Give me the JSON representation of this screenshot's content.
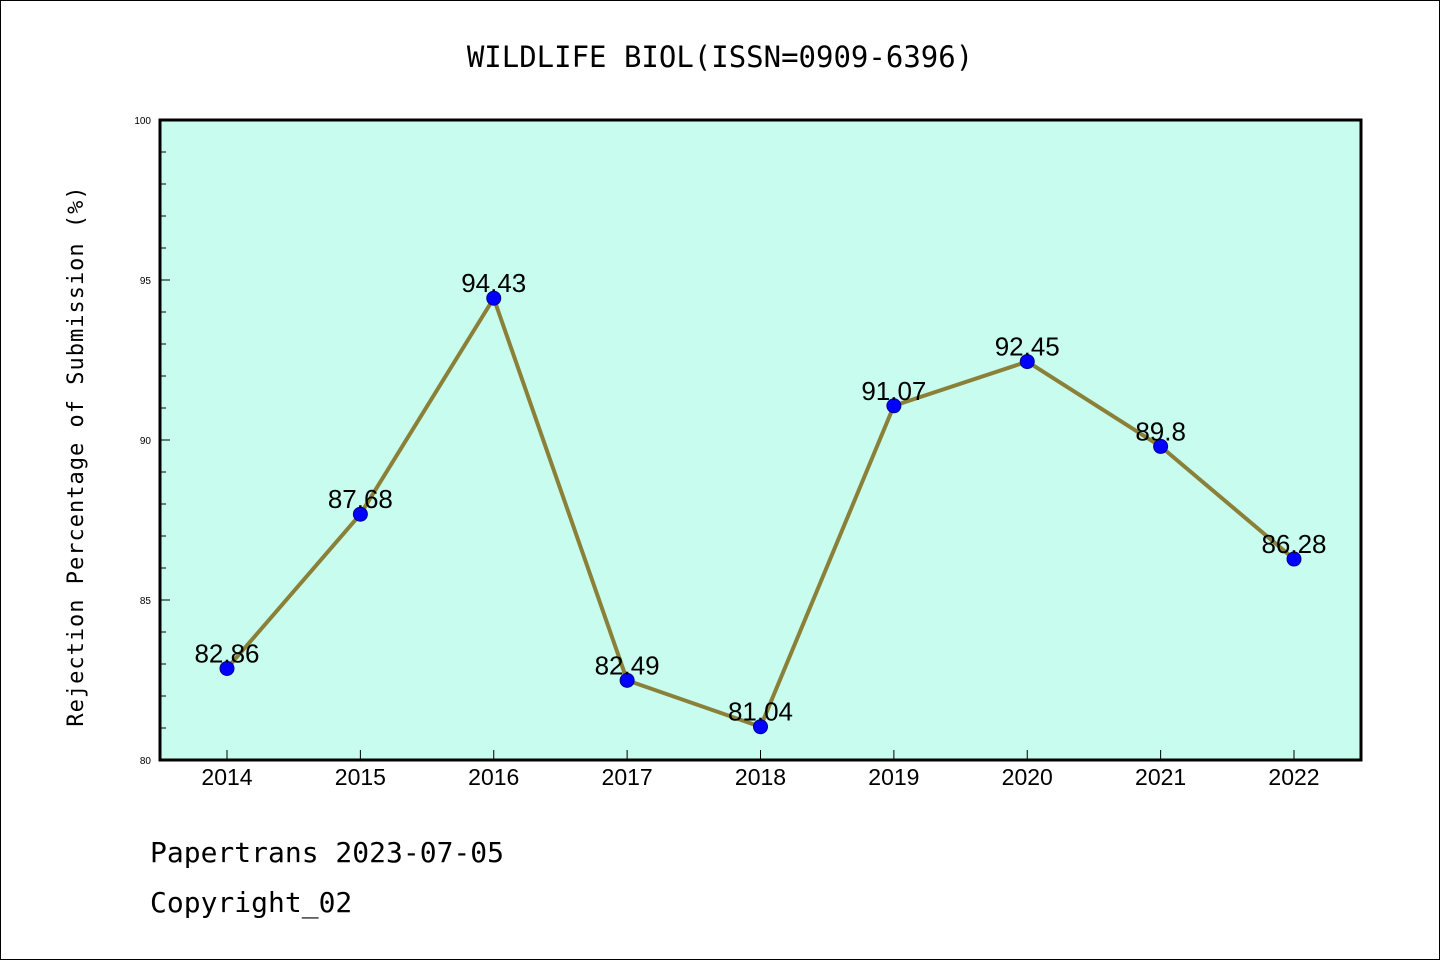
{
  "chart_data": {
    "type": "line",
    "title": "WILDLIFE BIOL(ISSN=0909-6396)",
    "xlabel": "",
    "ylabel": "Rejection Percentage of Submission (%)",
    "categories": [
      "2014",
      "2015",
      "2016",
      "2017",
      "2018",
      "2019",
      "2020",
      "2021",
      "2022"
    ],
    "values": [
      82.86,
      87.68,
      94.43,
      82.49,
      81.04,
      91.07,
      92.45,
      89.8,
      86.28
    ],
    "data_labels": [
      "82.86",
      "87.68",
      "94.43",
      "82.49",
      "81.04",
      "91.07",
      "92.45",
      "89.8",
      "86.28"
    ],
    "ylim": [
      80,
      100
    ],
    "yticks": [
      80,
      85,
      90,
      95,
      100
    ],
    "grid": false,
    "legend": "none",
    "colors": {
      "plot_background": "#c8fcef",
      "line": "#8b8038",
      "marker": "#0000ff",
      "marker_edge": "#00008b"
    }
  },
  "footer": {
    "line1": "Papertrans 2023-07-05",
    "line2": "Copyright_02"
  }
}
